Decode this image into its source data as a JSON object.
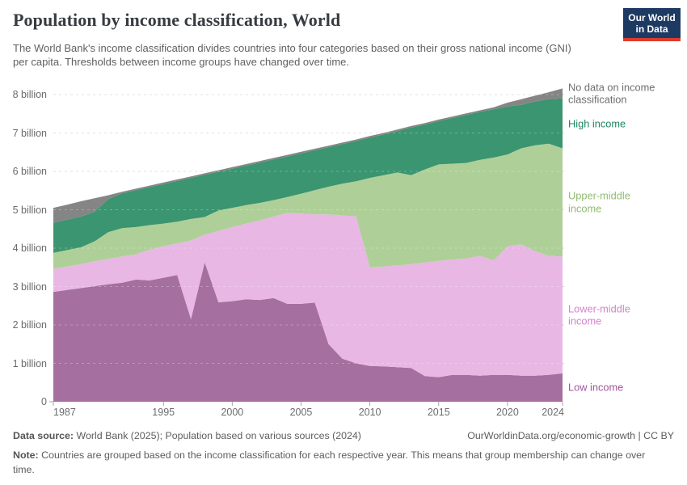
{
  "header": {
    "title": "Population by income classification, World",
    "subtitle": "The World Bank's income classification divides countries into four categories based on their gross national income (GNI) per capita. Thresholds between income groups have changed over time.",
    "logo": {
      "line1": "Our World",
      "line2": "in Data",
      "bg_color": "#1d3a63",
      "accent_color": "#dc3b2e"
    }
  },
  "chart_data": {
    "type": "area",
    "stacked": true,
    "title": "Population by income classification, World",
    "xlabel": "",
    "ylabel": "",
    "xlim": [
      1987,
      2024
    ],
    "ylim": [
      0,
      8.3
    ],
    "grid": "horizontal-dashed",
    "legend_position": "right",
    "units": "billion people",
    "x": [
      1987,
      1988,
      1989,
      1990,
      1991,
      1992,
      1993,
      1994,
      1995,
      1996,
      1997,
      1998,
      1999,
      2000,
      2001,
      2002,
      2003,
      2004,
      2005,
      2006,
      2007,
      2008,
      2009,
      2010,
      2011,
      2012,
      2013,
      2014,
      2015,
      2016,
      2017,
      2018,
      2019,
      2020,
      2021,
      2022,
      2023,
      2024
    ],
    "series": [
      {
        "name": "Low income",
        "fill": "#a56f9f",
        "label_color": "#a2559c",
        "values": [
          2.86,
          2.91,
          2.96,
          3.01,
          3.06,
          3.1,
          3.18,
          3.16,
          3.23,
          3.3,
          2.15,
          3.63,
          2.59,
          2.62,
          2.67,
          2.65,
          2.7,
          2.55,
          2.55,
          2.58,
          1.5,
          1.12,
          1.0,
          0.93,
          0.92,
          0.9,
          0.88,
          0.67,
          0.64,
          0.7,
          0.7,
          0.68,
          0.7,
          0.7,
          0.68,
          0.68,
          0.7,
          0.74
        ]
      },
      {
        "name": "Lower-middle income",
        "fill": "#e8b7e3",
        "label_color": "#d384cc",
        "values": [
          0.6,
          0.61,
          0.62,
          0.65,
          0.66,
          0.68,
          0.66,
          0.8,
          0.82,
          0.82,
          2.05,
          0.72,
          1.86,
          1.93,
          1.97,
          2.07,
          2.12,
          2.37,
          2.35,
          2.3,
          3.38,
          3.73,
          3.83,
          2.57,
          2.6,
          2.65,
          2.7,
          2.96,
          3.03,
          3.0,
          3.03,
          3.12,
          2.98,
          3.35,
          3.42,
          3.24,
          3.1,
          3.04
        ]
      },
      {
        "name": "Upper-middle income",
        "fill": "#aed098",
        "label_color": "#90bc70",
        "values": [
          0.42,
          0.43,
          0.44,
          0.52,
          0.7,
          0.74,
          0.71,
          0.64,
          0.59,
          0.57,
          0.56,
          0.46,
          0.53,
          0.5,
          0.48,
          0.46,
          0.43,
          0.41,
          0.52,
          0.63,
          0.72,
          0.83,
          0.91,
          2.33,
          2.38,
          2.42,
          2.32,
          2.42,
          2.51,
          2.5,
          2.49,
          2.5,
          2.68,
          2.39,
          2.5,
          2.76,
          2.92,
          2.82
        ]
      },
      {
        "name": "High income",
        "fill": "#3a9570",
        "label_color": "#1d8663",
        "values": [
          0.78,
          0.79,
          0.8,
          0.77,
          0.86,
          0.91,
          0.96,
          0.99,
          1.03,
          1.06,
          1.07,
          1.1,
          1.01,
          1.02,
          1.03,
          1.05,
          1.06,
          1.06,
          1.05,
          1.04,
          1.03,
          1.03,
          1.05,
          1.05,
          1.06,
          1.08,
          1.24,
          1.17,
          1.13,
          1.19,
          1.25,
          1.25,
          1.26,
          1.25,
          1.13,
          1.14,
          1.16,
          1.3
        ]
      },
      {
        "name": "No data on income classification",
        "fill": "#858585",
        "label_color": "#6e6e6e",
        "values": [
          0.39,
          0.39,
          0.4,
          0.35,
          0.1,
          0.04,
          0.04,
          0.04,
          0.04,
          0.04,
          0.04,
          0.04,
          0.04,
          0.04,
          0.04,
          0.04,
          0.04,
          0.04,
          0.04,
          0.04,
          0.04,
          0.04,
          0.04,
          0.04,
          0.04,
          0.04,
          0.04,
          0.04,
          0.04,
          0.04,
          0.04,
          0.04,
          0.05,
          0.1,
          0.15,
          0.15,
          0.18,
          0.26
        ]
      }
    ],
    "xticks": [
      1987,
      1995,
      2000,
      2005,
      2010,
      2015,
      2020,
      2024
    ],
    "yticks": [
      {
        "value": 0,
        "label": "0"
      },
      {
        "value": 1,
        "label": "1 billion"
      },
      {
        "value": 2,
        "label": "2 billion"
      },
      {
        "value": 3,
        "label": "3 billion"
      },
      {
        "value": 4,
        "label": "4 billion"
      },
      {
        "value": 5,
        "label": "5 billion"
      },
      {
        "value": 6,
        "label": "6 billion"
      },
      {
        "value": 7,
        "label": "7 billion"
      },
      {
        "value": 8,
        "label": "8 billion"
      }
    ]
  },
  "footer": {
    "source_label": "Data source:",
    "source_text": "World Bank (2025); Population based on various sources (2024)",
    "link_text": "OurWorldinData.org/economic-growth | CC BY",
    "note_label": "Note:",
    "note_text": "Countries are grouped based on the income classification for each respective year. This means that group membership can change over time."
  }
}
